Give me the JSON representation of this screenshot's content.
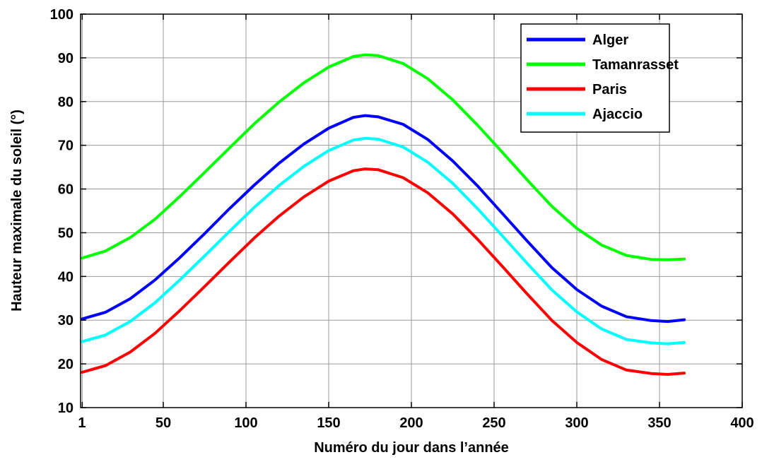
{
  "chart_data": {
    "type": "line",
    "title": "",
    "xlabel": "Numéro du jour dans l’année",
    "ylabel": "Hauteur maximale du soleil (°)",
    "xlim": [
      0,
      400
    ],
    "ylim": [
      10,
      100
    ],
    "xticks": [
      1,
      50,
      100,
      150,
      200,
      250,
      300,
      350,
      400
    ],
    "yticks": [
      10,
      20,
      30,
      40,
      50,
      60,
      70,
      80,
      90,
      100
    ],
    "grid": true,
    "legend_position": "top-right",
    "series": [
      {
        "name": "Alger",
        "color": "#0000ff",
        "x": [
          1,
          15,
          30,
          45,
          60,
          75,
          90,
          105,
          120,
          135,
          150,
          165,
          172,
          180,
          195,
          210,
          225,
          240,
          255,
          270,
          285,
          300,
          315,
          330,
          345,
          355,
          365
        ],
        "y": [
          30.3,
          31.8,
          34.9,
          39.2,
          44.3,
          49.8,
          55.5,
          60.9,
          65.9,
          70.3,
          73.9,
          76.4,
          76.8,
          76.5,
          74.8,
          71.3,
          66.4,
          60.7,
          54.4,
          48.1,
          42.0,
          37.0,
          33.2,
          30.8,
          29.9,
          29.7,
          30.1
        ]
      },
      {
        "name": "Tamanrasset",
        "color": "#00ff00",
        "x": [
          1,
          15,
          30,
          45,
          60,
          75,
          90,
          105,
          120,
          135,
          150,
          165,
          172,
          180,
          195,
          210,
          225,
          240,
          255,
          270,
          285,
          300,
          315,
          330,
          345,
          355,
          365
        ],
        "y": [
          44.2,
          45.8,
          48.9,
          53.1,
          58.3,
          63.8,
          69.4,
          74.9,
          79.9,
          84.3,
          87.9,
          90.3,
          90.7,
          90.5,
          88.7,
          85.2,
          80.4,
          74.6,
          68.4,
          62.1,
          56.0,
          51.0,
          47.2,
          44.8,
          43.9,
          43.8,
          44.0
        ]
      },
      {
        "name": "Paris",
        "color": "#ff0000",
        "x": [
          1,
          15,
          30,
          45,
          60,
          75,
          90,
          105,
          120,
          135,
          150,
          165,
          172,
          180,
          195,
          210,
          225,
          240,
          255,
          270,
          285,
          300,
          315,
          330,
          345,
          355,
          365
        ],
        "y": [
          18.1,
          19.6,
          22.7,
          27.0,
          32.2,
          37.7,
          43.3,
          48.8,
          53.8,
          58.2,
          61.8,
          64.2,
          64.6,
          64.4,
          62.6,
          59.1,
          54.3,
          48.5,
          42.3,
          36.0,
          29.9,
          24.9,
          21.0,
          18.6,
          17.8,
          17.6,
          17.9
        ]
      },
      {
        "name": "Ajaccio",
        "color": "#00ffff",
        "x": [
          1,
          15,
          30,
          45,
          60,
          75,
          90,
          105,
          120,
          135,
          150,
          165,
          172,
          180,
          195,
          210,
          225,
          240,
          255,
          270,
          285,
          300,
          315,
          330,
          345,
          355,
          365
        ],
        "y": [
          25.1,
          26.6,
          29.7,
          34.0,
          39.2,
          44.7,
          50.3,
          55.8,
          60.8,
          65.2,
          68.8,
          71.2,
          71.6,
          71.4,
          69.6,
          66.1,
          61.3,
          55.5,
          49.3,
          43.0,
          36.9,
          31.9,
          28.0,
          25.6,
          24.8,
          24.6,
          24.9
        ]
      }
    ]
  }
}
